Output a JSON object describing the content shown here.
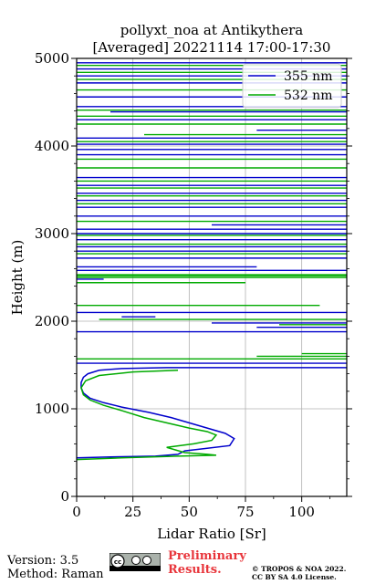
{
  "chart_data": {
    "type": "line",
    "title": "pollyxt_noa at Antikythera",
    "subtitle": "[Averaged] 20221114 17:00-17:30",
    "xlabel": "Lidar Ratio [Sr]",
    "ylabel": "Height (m)",
    "xlim": [
      0,
      120
    ],
    "ylim": [
      0,
      5000
    ],
    "x_ticks": [
      "0",
      "25",
      "50",
      "75",
      "100"
    ],
    "y_ticks": [
      "0",
      "1000",
      "2000",
      "3000",
      "4000",
      "5000"
    ],
    "grid": true,
    "legend_position": "top-right",
    "series": [
      {
        "name": "355 nm",
        "color": "#0000cc",
        "x": [
          0,
          15,
          35,
          45,
          48,
          55,
          68,
          70,
          66,
          58,
          50,
          42,
          32,
          20,
          12,
          6,
          3,
          2,
          2,
          3,
          5,
          10,
          20,
          40,
          80,
          120
        ],
        "y": [
          440,
          450,
          460,
          480,
          520,
          540,
          580,
          660,
          720,
          780,
          840,
          900,
          960,
          1020,
          1070,
          1120,
          1180,
          1240,
          1300,
          1360,
          1400,
          1440,
          1460,
          1470,
          1470,
          1470
        ]
      },
      {
        "name": "532 nm",
        "color": "#00aa00",
        "x": [
          0,
          20,
          45,
          62,
          58,
          48,
          40,
          52,
          60,
          62,
          58,
          50,
          40,
          30,
          20,
          12,
          6,
          3,
          2,
          4,
          10,
          25,
          45
        ],
        "y": [
          420,
          440,
          460,
          470,
          480,
          500,
          560,
          600,
          640,
          700,
          740,
          780,
          840,
          900,
          980,
          1040,
          1100,
          1160,
          1240,
          1320,
          1380,
          1420,
          1440
        ]
      }
    ],
    "horizontal_segments": {
      "355 nm": [
        {
          "y": 4950,
          "x": [
            0,
            120
          ]
        },
        {
          "y": 4880,
          "x": [
            0,
            120
          ]
        },
        {
          "y": 4800,
          "x": [
            0,
            120
          ]
        },
        {
          "y": 4720,
          "x": [
            0,
            120
          ]
        },
        {
          "y": 4560,
          "x": [
            0,
            120
          ]
        },
        {
          "y": 4450,
          "x": [
            0,
            120
          ]
        },
        {
          "y": 4390,
          "x": [
            15,
            120
          ]
        },
        {
          "y": 4300,
          "x": [
            0,
            120
          ]
        },
        {
          "y": 4180,
          "x": [
            80,
            120
          ]
        },
        {
          "y": 4090,
          "x": [
            0,
            120
          ]
        },
        {
          "y": 4020,
          "x": [
            0,
            120
          ]
        },
        {
          "y": 3960,
          "x": [
            0,
            120
          ]
        },
        {
          "y": 3900,
          "x": [
            0,
            120
          ]
        },
        {
          "y": 3640,
          "x": [
            0,
            120
          ]
        },
        {
          "y": 3550,
          "x": [
            0,
            120
          ]
        },
        {
          "y": 3460,
          "x": [
            0,
            120
          ]
        },
        {
          "y": 3380,
          "x": [
            0,
            120
          ]
        },
        {
          "y": 3300,
          "x": [
            0,
            120
          ]
        },
        {
          "y": 3200,
          "x": [
            0,
            120
          ]
        },
        {
          "y": 3100,
          "x": [
            60,
            120
          ]
        },
        {
          "y": 3050,
          "x": [
            0,
            120
          ]
        },
        {
          "y": 3000,
          "x": [
            0,
            120
          ]
        },
        {
          "y": 2930,
          "x": [
            0,
            120
          ]
        },
        {
          "y": 2850,
          "x": [
            0,
            120
          ]
        },
        {
          "y": 2800,
          "x": [
            0,
            120
          ]
        },
        {
          "y": 2720,
          "x": [
            0,
            120
          ]
        },
        {
          "y": 2620,
          "x": [
            0,
            80
          ]
        },
        {
          "y": 2580,
          "x": [
            0,
            120
          ]
        },
        {
          "y": 2480,
          "x": [
            0,
            12
          ]
        },
        {
          "y": 2100,
          "x": [
            0,
            120
          ]
        },
        {
          "y": 2050,
          "x": [
            20,
            35
          ]
        },
        {
          "y": 1980,
          "x": [
            60,
            120
          ]
        },
        {
          "y": 1930,
          "x": [
            80,
            120
          ]
        },
        {
          "y": 1880,
          "x": [
            0,
            120
          ]
        },
        {
          "y": 1520,
          "x": [
            0,
            120
          ]
        }
      ],
      "532 nm": [
        {
          "y": 4920,
          "x": [
            0,
            120
          ]
        },
        {
          "y": 4840,
          "x": [
            0,
            120
          ]
        },
        {
          "y": 4760,
          "x": [
            0,
            120
          ]
        },
        {
          "y": 4640,
          "x": [
            0,
            120
          ]
        },
        {
          "y": 4410,
          "x": [
            0,
            120
          ]
        },
        {
          "y": 4340,
          "x": [
            0,
            120
          ]
        },
        {
          "y": 4250,
          "x": [
            0,
            120
          ]
        },
        {
          "y": 4130,
          "x": [
            30,
            120
          ]
        },
        {
          "y": 4050,
          "x": [
            0,
            120
          ]
        },
        {
          "y": 3850,
          "x": [
            0,
            120
          ]
        },
        {
          "y": 3750,
          "x": [
            0,
            120
          ]
        },
        {
          "y": 3600,
          "x": [
            0,
            120
          ]
        },
        {
          "y": 3520,
          "x": [
            0,
            120
          ]
        },
        {
          "y": 3430,
          "x": [
            0,
            120
          ]
        },
        {
          "y": 3340,
          "x": [
            0,
            120
          ]
        },
        {
          "y": 3140,
          "x": [
            0,
            120
          ]
        },
        {
          "y": 2980,
          "x": [
            0,
            120
          ]
        },
        {
          "y": 2880,
          "x": [
            0,
            120
          ]
        },
        {
          "y": 2770,
          "x": [
            0,
            120
          ]
        },
        {
          "y": 2530,
          "x": [
            0,
            120
          ]
        },
        {
          "y": 2520,
          "x": [
            0,
            120
          ]
        },
        {
          "y": 2500,
          "x": [
            0,
            120
          ]
        },
        {
          "y": 2440,
          "x": [
            0,
            75
          ]
        },
        {
          "y": 2180,
          "x": [
            0,
            108
          ]
        },
        {
          "y": 2020,
          "x": [
            10,
            120
          ]
        },
        {
          "y": 1960,
          "x": [
            90,
            120
          ]
        },
        {
          "y": 1630,
          "x": [
            100,
            120
          ]
        },
        {
          "y": 1600,
          "x": [
            80,
            120
          ]
        },
        {
          "y": 1570,
          "x": [
            0,
            120
          ]
        }
      ]
    }
  },
  "footer": {
    "version": "Version: 3.5",
    "method": "Method: Raman",
    "preliminary_line1": "Preliminary",
    "preliminary_line2": "Results.",
    "copyright_line1": "© TROPOS & NOA 2022.",
    "copyright_line2": "CC BY SA 4.0 License.",
    "license_badge_icon": "cc-by-sa-icon"
  }
}
